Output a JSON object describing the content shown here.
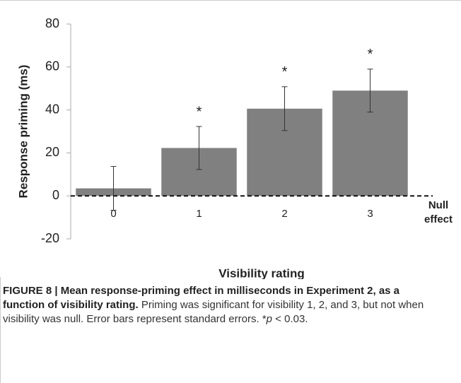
{
  "chart_data": {
    "type": "bar",
    "categories": [
      "0",
      "1",
      "2",
      "3"
    ],
    "values": [
      3.5,
      22.3,
      40.6,
      49
    ],
    "errors": [
      10.2,
      10,
      10.2,
      10
    ],
    "significance_markers": [
      null,
      "*",
      "*",
      "*"
    ],
    "color": "#808080",
    "ylim": [
      -20,
      80
    ],
    "yticks": [
      -20,
      0,
      20,
      40,
      60,
      80
    ],
    "ylabel": "Response priming (ms)",
    "xlabel": "Visibility rating",
    "reference_line": {
      "value": 0,
      "label": [
        "Null",
        "effect"
      ]
    }
  },
  "caption": {
    "label": "FIGURE 8 | Mean response-priming effect in milliseconds in Experiment 2, as a function of visibility rating.",
    "body": "Priming was significant for visibility 1, 2, and 3, but not when visibility was null. Error bars represent standard errors.",
    "footnote": [
      "*",
      "p",
      "< 0.03."
    ]
  }
}
